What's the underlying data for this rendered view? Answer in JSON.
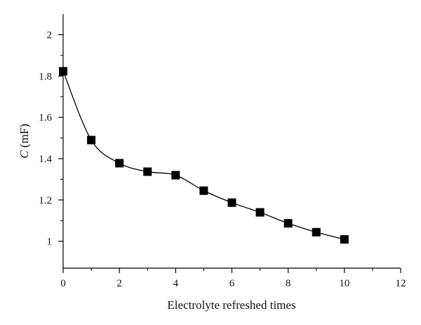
{
  "chart_data": {
    "type": "scatter",
    "xlabel": "Electrolyte refreshed times",
    "ylabel_var": "C",
    "ylabel_unit": " (mF)",
    "xlim": [
      0,
      12
    ],
    "ylim": [
      0.87,
      2.1
    ],
    "xticks": [
      0,
      2,
      4,
      6,
      8,
      10,
      12
    ],
    "yticks": [
      1,
      1.2,
      1.4,
      1.6,
      1.8,
      2
    ],
    "ytick_labels": [
      "1",
      "1.2",
      "1.4",
      "1.6",
      "1.8",
      "2"
    ],
    "grid": false,
    "smooth_fit_line": true,
    "marker": "square",
    "color": "#000000",
    "series": [
      {
        "x": [
          0,
          1,
          2,
          3,
          4,
          5,
          6,
          7,
          8,
          9,
          10
        ],
        "y": [
          1.823,
          1.49,
          1.378,
          1.337,
          1.32,
          1.245,
          1.187,
          1.14,
          1.087,
          1.044,
          1.009
        ]
      }
    ]
  }
}
